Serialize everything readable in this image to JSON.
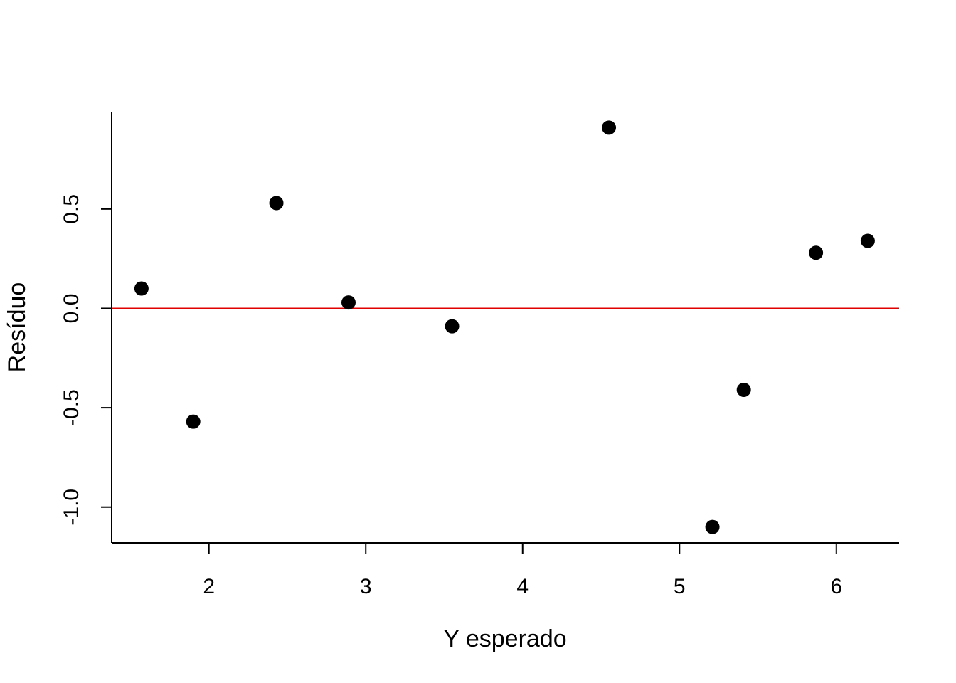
{
  "chart_data": {
    "type": "scatter",
    "title": "",
    "xlabel": "Y esperado",
    "ylabel": "Resíduo",
    "xlim": [
      1.38,
      6.4
    ],
    "ylim": [
      -1.18,
      0.99
    ],
    "x_ticks": [
      2,
      3,
      4,
      5,
      6
    ],
    "x_tick_labels": [
      "2",
      "3",
      "4",
      "5",
      "6"
    ],
    "y_ticks": [
      -1.0,
      -0.5,
      0.0,
      0.5
    ],
    "y_tick_labels": [
      "-1.0",
      "-0.5",
      "0.0",
      "0.5"
    ],
    "grid": false,
    "reference_line": {
      "y": 0,
      "color": "#e00000"
    },
    "point_color": "#000000",
    "points": [
      {
        "x": 1.57,
        "y": 0.1
      },
      {
        "x": 1.9,
        "y": -0.57
      },
      {
        "x": 2.43,
        "y": 0.53
      },
      {
        "x": 2.89,
        "y": 0.03
      },
      {
        "x": 3.55,
        "y": -0.09
      },
      {
        "x": 4.55,
        "y": 0.91
      },
      {
        "x": 5.21,
        "y": -1.1
      },
      {
        "x": 5.41,
        "y": -0.41
      },
      {
        "x": 5.87,
        "y": 0.28
      },
      {
        "x": 6.2,
        "y": 0.34
      }
    ]
  }
}
